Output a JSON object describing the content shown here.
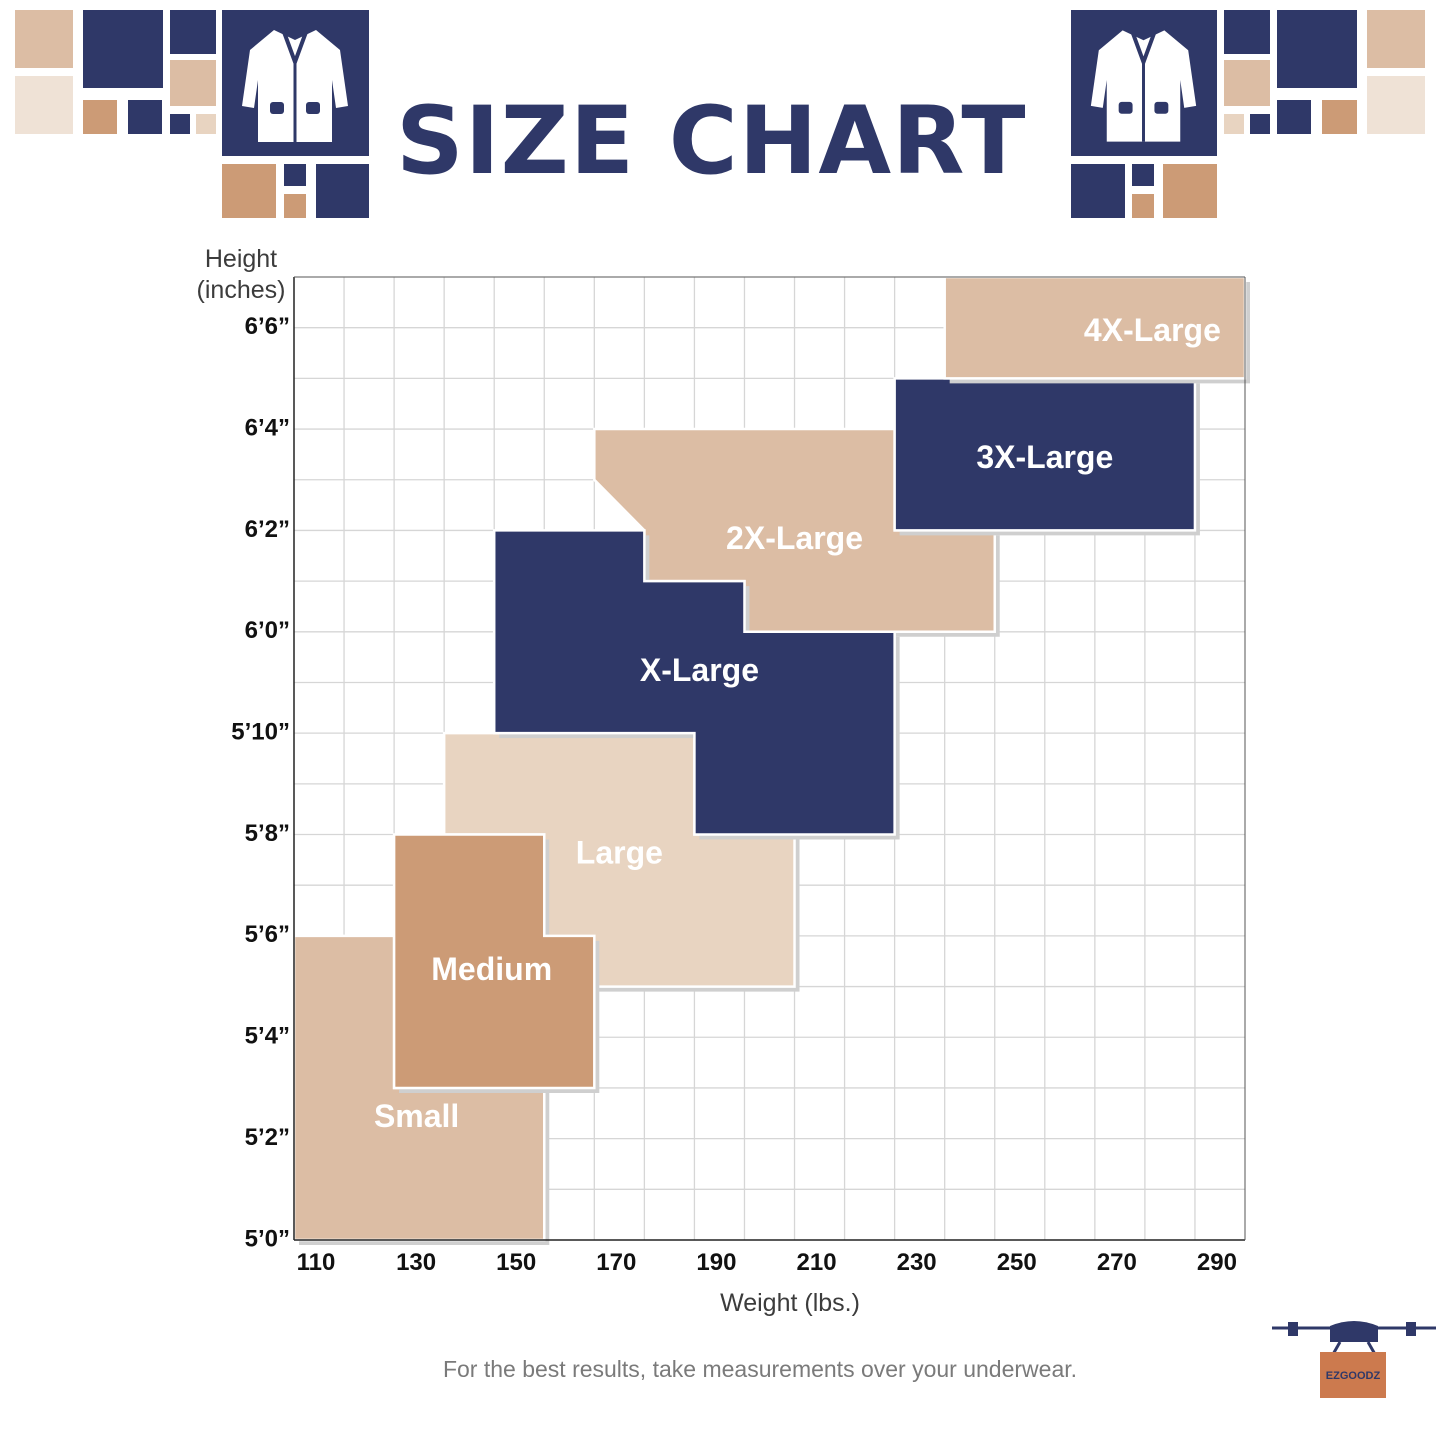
{
  "title": "SIZE CHART",
  "footnote": "For the best results, take measurements over your underwear.",
  "brand_logo_text": "EZGOODZ",
  "colors": {
    "navy": "#2f3868",
    "tan": "#dcbda4",
    "light_tan": "#e8d4c1",
    "copper": "#cc9b76",
    "grid": "#d6d6d6",
    "text_dark": "#111111",
    "text_axis": "#3c3c3c",
    "text_note": "#7a7a7a"
  },
  "chart_data": {
    "type": "region",
    "xlabel": "Weight (lbs.)",
    "ylabel": "Height\n(inches)",
    "xlim": [
      110,
      300
    ],
    "ylim": [
      60,
      79
    ],
    "x_ticks": [
      {
        "value": 110,
        "label": "110"
      },
      {
        "value": 130,
        "label": "130"
      },
      {
        "value": 150,
        "label": "150"
      },
      {
        "value": 170,
        "label": "170"
      },
      {
        "value": 190,
        "label": "190"
      },
      {
        "value": 210,
        "label": "210"
      },
      {
        "value": 230,
        "label": "230"
      },
      {
        "value": 250,
        "label": "250"
      },
      {
        "value": 270,
        "label": "270"
      },
      {
        "value": 290,
        "label": "290"
      }
    ],
    "y_ticks": [
      {
        "value": 60,
        "label": "5’0”"
      },
      {
        "value": 62,
        "label": "5’2”"
      },
      {
        "value": 64,
        "label": "5’4”"
      },
      {
        "value": 66,
        "label": "5’6”"
      },
      {
        "value": 68,
        "label": "5’8”"
      },
      {
        "value": 70,
        "label": "5’10”"
      },
      {
        "value": 72,
        "label": "6’0”"
      },
      {
        "value": 74,
        "label": "6’2”"
      },
      {
        "value": 76,
        "label": "6’4”"
      },
      {
        "value": 78,
        "label": "6’6”"
      }
    ],
    "grid": true,
    "sizes": [
      {
        "name": "Small",
        "color": "#dcbda4",
        "label_at": [
          134.5,
          62.4
        ],
        "region": [
          [
            110,
            60
          ],
          [
            160,
            60
          ],
          [
            160,
            63
          ],
          [
            130,
            63
          ],
          [
            130,
            66
          ],
          [
            110,
            66
          ]
        ]
      },
      {
        "name": "Large",
        "color": "#e8d4c1",
        "label_at": [
          175,
          67.6
        ],
        "region": [
          [
            160,
            65
          ],
          [
            210,
            65
          ],
          [
            210,
            68
          ],
          [
            190,
            68
          ],
          [
            190,
            70
          ],
          [
            140,
            70
          ],
          [
            140,
            68
          ],
          [
            160,
            68
          ]
        ]
      },
      {
        "name": "Medium",
        "color": "#cc9b76",
        "label_at": [
          149.5,
          65.3
        ],
        "region": [
          [
            130,
            63
          ],
          [
            170,
            63
          ],
          [
            170,
            66
          ],
          [
            160,
            66
          ],
          [
            160,
            68
          ],
          [
            130,
            68
          ]
        ]
      },
      {
        "name": "2X-Large",
        "color": "#dcbda4",
        "label_at": [
          210,
          73.8
        ],
        "region": [
          [
            170,
            75
          ],
          [
            170,
            76
          ],
          [
            230,
            76
          ],
          [
            230,
            74
          ],
          [
            250,
            74
          ],
          [
            250,
            72
          ],
          [
            200,
            72
          ],
          [
            200,
            73
          ],
          [
            180,
            73
          ],
          [
            180,
            74
          ]
        ]
      },
      {
        "name": "X-Large",
        "color": "#2f3868",
        "label_at": [
          191,
          71.2
        ],
        "region": [
          [
            150,
            70
          ],
          [
            190,
            70
          ],
          [
            190,
            68
          ],
          [
            230,
            68
          ],
          [
            230,
            72
          ],
          [
            200,
            72
          ],
          [
            200,
            73
          ],
          [
            180,
            73
          ],
          [
            180,
            74
          ],
          [
            150,
            74
          ]
        ]
      },
      {
        "name": "3X-Large",
        "color": "#2f3868",
        "label_at": [
          260,
          75.4
        ],
        "region": [
          [
            230,
            74
          ],
          [
            290,
            74
          ],
          [
            290,
            77
          ],
          [
            230,
            77
          ]
        ]
      },
      {
        "name": "4X-Large",
        "color": "#dcbda4",
        "label_at": [
          281.5,
          77.9
        ],
        "region": [
          [
            240,
            77
          ],
          [
            300,
            77
          ],
          [
            300,
            79
          ],
          [
            240,
            79
          ]
        ]
      }
    ]
  }
}
